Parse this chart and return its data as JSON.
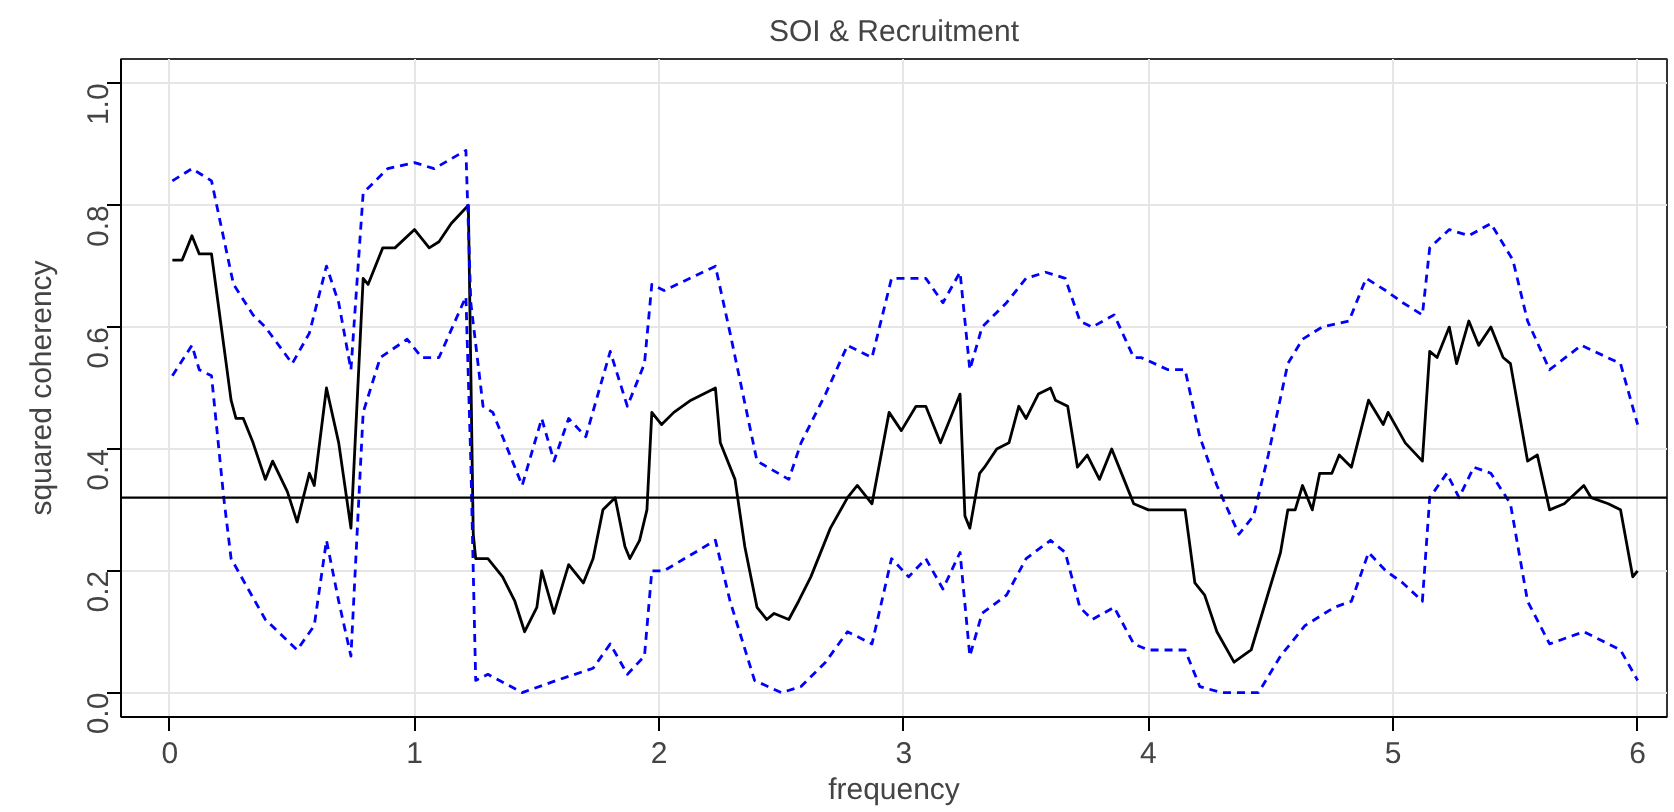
{
  "chart_data": {
    "type": "line",
    "title": "SOI & Recruitment",
    "xlabel": "frequency",
    "ylabel": "squared coherency",
    "xlim": [
      -0.2,
      6.12
    ],
    "ylim": [
      -0.04,
      1.04
    ],
    "xticks": [
      0,
      1,
      2,
      3,
      4,
      5,
      6
    ],
    "yticks": [
      {
        "value": 0,
        "label": "0.0"
      },
      0.2,
      0.4,
      0.6,
      0.8,
      {
        "value": 1,
        "label": "1.0"
      }
    ],
    "grid": true,
    "ref_lines": [
      {
        "axis": "y",
        "value": 0.32,
        "color": "#000000",
        "line_style": "solid"
      }
    ],
    "series": [
      {
        "color": "#000000",
        "line_style": "solid",
        "x": [
          0.01,
          0.05,
          0.09,
          0.12,
          0.17,
          0.19,
          0.25,
          0.27,
          0.3,
          0.34,
          0.39,
          0.42,
          0.48,
          0.52,
          0.57,
          0.59,
          0.64,
          0.69,
          0.74,
          0.79,
          0.81,
          0.87,
          0.92,
          1.0,
          1.06,
          1.1,
          1.15,
          1.22,
          1.24,
          1.25,
          1.3,
          1.36,
          1.41,
          1.45,
          1.5,
          1.52,
          1.57,
          1.63,
          1.69,
          1.73,
          1.77,
          1.82,
          1.86,
          1.88,
          1.92,
          1.95,
          1.97,
          2.01,
          2.06,
          2.13,
          2.23,
          2.25,
          2.31,
          2.35,
          2.4,
          2.44,
          2.47,
          2.53,
          2.57,
          2.62,
          2.7,
          2.77,
          2.81,
          2.87,
          2.94,
          2.99,
          3.05,
          3.09,
          3.15,
          3.19,
          3.23,
          3.25,
          3.27,
          3.31,
          3.33,
          3.38,
          3.43,
          3.47,
          3.5,
          3.55,
          3.6,
          3.62,
          3.67,
          3.71,
          3.75,
          3.8,
          3.85,
          3.9,
          3.94,
          4.0,
          4.1,
          4.15,
          4.19,
          4.23,
          4.28,
          4.35,
          4.42,
          4.48,
          4.54,
          4.57,
          4.6,
          4.63,
          4.67,
          4.7,
          4.75,
          4.78,
          4.83,
          4.9,
          4.96,
          4.98,
          5.05,
          5.12,
          5.15,
          5.18,
          5.23,
          5.26,
          5.31,
          5.35,
          5.4,
          5.45,
          5.48,
          5.55,
          5.59,
          5.64,
          5.7,
          5.78,
          5.81,
          5.88,
          5.93,
          5.98,
          6.0
        ],
        "values": [
          0.71,
          0.71,
          0.75,
          0.72,
          0.72,
          0.66,
          0.48,
          0.45,
          0.45,
          0.41,
          0.35,
          0.38,
          0.33,
          0.28,
          0.36,
          0.34,
          0.5,
          0.41,
          0.27,
          0.68,
          0.67,
          0.73,
          0.73,
          0.76,
          0.73,
          0.74,
          0.77,
          0.8,
          0.26,
          0.22,
          0.22,
          0.19,
          0.15,
          0.1,
          0.14,
          0.2,
          0.13,
          0.21,
          0.18,
          0.22,
          0.3,
          0.32,
          0.24,
          0.22,
          0.25,
          0.3,
          0.46,
          0.44,
          0.46,
          0.48,
          0.5,
          0.41,
          0.35,
          0.24,
          0.14,
          0.12,
          0.13,
          0.12,
          0.15,
          0.19,
          0.27,
          0.32,
          0.34,
          0.31,
          0.46,
          0.43,
          0.47,
          0.47,
          0.41,
          0.45,
          0.49,
          0.29,
          0.27,
          0.36,
          0.37,
          0.4,
          0.41,
          0.47,
          0.45,
          0.49,
          0.5,
          0.48,
          0.47,
          0.37,
          0.39,
          0.35,
          0.4,
          0.35,
          0.31,
          0.3,
          0.3,
          0.3,
          0.18,
          0.16,
          0.1,
          0.05,
          0.07,
          0.15,
          0.23,
          0.3,
          0.3,
          0.34,
          0.3,
          0.36,
          0.36,
          0.39,
          0.37,
          0.48,
          0.44,
          0.46,
          0.41,
          0.38,
          0.56,
          0.55,
          0.6,
          0.54,
          0.61,
          0.57,
          0.6,
          0.55,
          0.54,
          0.38,
          0.39,
          0.3,
          0.31,
          0.34,
          0.32,
          0.31,
          0.3,
          0.19,
          0.2
        ]
      },
      {
        "color": "#0000ff",
        "line_style": "dashed",
        "x": [
          0.01,
          0.09,
          0.17,
          0.26,
          0.34,
          0.39,
          0.5,
          0.57,
          0.64,
          0.69,
          0.74,
          0.79,
          0.89,
          1.0,
          1.08,
          1.21,
          1.23,
          1.28,
          1.32,
          1.44,
          1.52,
          1.57,
          1.63,
          1.7,
          1.8,
          1.87,
          1.94,
          1.97,
          2.02,
          2.23,
          2.29,
          2.4,
          2.53,
          2.58,
          2.68,
          2.77,
          2.87,
          2.95,
          3.09,
          3.16,
          3.23,
          3.27,
          3.32,
          3.42,
          3.5,
          3.58,
          3.66,
          3.72,
          3.77,
          3.86,
          3.94,
          3.97,
          4.08,
          4.15,
          4.21,
          4.28,
          4.37,
          4.43,
          4.49,
          4.57,
          4.63,
          4.71,
          4.82,
          4.89,
          4.97,
          5.04,
          5.12,
          5.15,
          5.23,
          5.31,
          5.4,
          5.49,
          5.55,
          5.64,
          5.77,
          5.93,
          6.0
        ],
        "values": [
          0.84,
          0.86,
          0.84,
          0.67,
          0.62,
          0.6,
          0.54,
          0.59,
          0.7,
          0.64,
          0.53,
          0.82,
          0.86,
          0.87,
          0.86,
          0.89,
          0.64,
          0.47,
          0.46,
          0.34,
          0.45,
          0.38,
          0.45,
          0.42,
          0.56,
          0.47,
          0.54,
          0.67,
          0.66,
          0.7,
          0.59,
          0.38,
          0.35,
          0.41,
          0.49,
          0.57,
          0.55,
          0.68,
          0.68,
          0.64,
          0.69,
          0.53,
          0.6,
          0.64,
          0.68,
          0.69,
          0.68,
          0.61,
          0.6,
          0.62,
          0.55,
          0.55,
          0.53,
          0.53,
          0.42,
          0.34,
          0.26,
          0.29,
          0.39,
          0.54,
          0.58,
          0.6,
          0.61,
          0.68,
          0.66,
          0.64,
          0.62,
          0.73,
          0.76,
          0.75,
          0.77,
          0.71,
          0.61,
          0.53,
          0.57,
          0.54,
          0.44
        ]
      },
      {
        "color": "#0000ff",
        "line_style": "dashed",
        "x": [
          0.01,
          0.09,
          0.12,
          0.17,
          0.22,
          0.25,
          0.39,
          0.52,
          0.59,
          0.64,
          0.69,
          0.74,
          0.79,
          0.86,
          0.97,
          1.03,
          1.1,
          1.21,
          1.23,
          1.25,
          1.3,
          1.44,
          1.58,
          1.73,
          1.8,
          1.87,
          1.94,
          1.97,
          2.02,
          2.23,
          2.29,
          2.39,
          2.5,
          2.58,
          2.68,
          2.77,
          2.87,
          2.95,
          3.02,
          3.09,
          3.16,
          3.23,
          3.27,
          3.32,
          3.42,
          3.5,
          3.6,
          3.66,
          3.72,
          3.77,
          3.86,
          3.94,
          4.0,
          4.15,
          4.21,
          4.3,
          4.45,
          4.54,
          4.64,
          4.76,
          4.83,
          4.9,
          4.97,
          5.04,
          5.12,
          5.15,
          5.22,
          5.27,
          5.33,
          5.4,
          5.48,
          5.55,
          5.64,
          5.78,
          5.93,
          6.0
        ],
        "values": [
          0.52,
          0.57,
          0.53,
          0.52,
          0.32,
          0.22,
          0.12,
          0.07,
          0.11,
          0.25,
          0.15,
          0.06,
          0.46,
          0.55,
          0.58,
          0.55,
          0.55,
          0.65,
          0.38,
          0.02,
          0.03,
          0.0,
          0.02,
          0.04,
          0.08,
          0.03,
          0.06,
          0.2,
          0.2,
          0.25,
          0.15,
          0.02,
          0.0,
          0.01,
          0.05,
          0.1,
          0.08,
          0.22,
          0.19,
          0.22,
          0.17,
          0.23,
          0.06,
          0.13,
          0.16,
          0.22,
          0.25,
          0.23,
          0.14,
          0.12,
          0.14,
          0.08,
          0.07,
          0.07,
          0.01,
          0.0,
          0.0,
          0.06,
          0.11,
          0.14,
          0.15,
          0.23,
          0.2,
          0.18,
          0.15,
          0.32,
          0.36,
          0.32,
          0.37,
          0.36,
          0.31,
          0.15,
          0.08,
          0.1,
          0.07,
          0.02
        ]
      }
    ]
  }
}
